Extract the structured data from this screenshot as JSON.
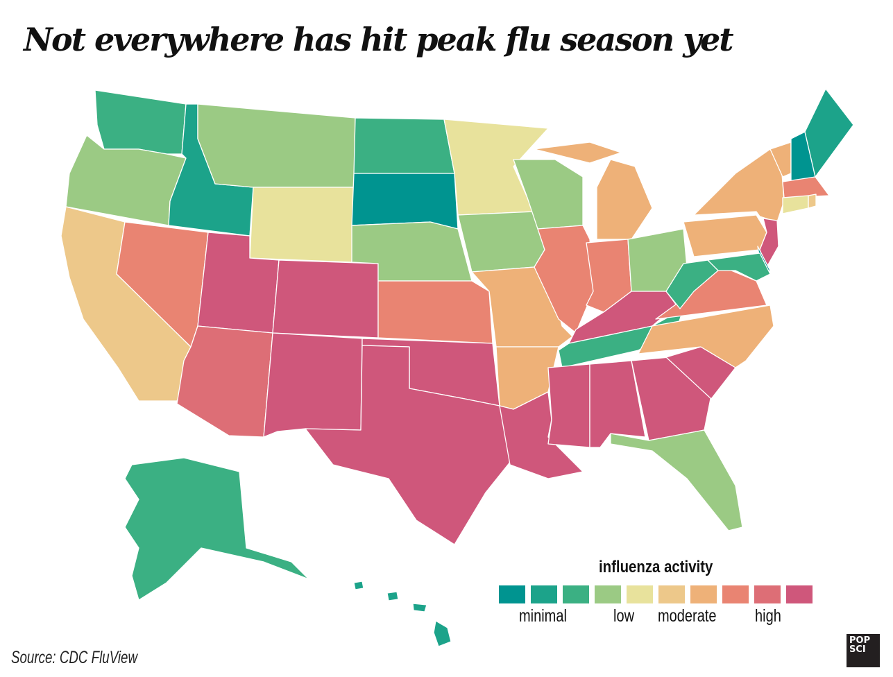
{
  "title": "Not everywhere has hit peak flu season yet",
  "legend": {
    "title": "influenza activity",
    "colors": [
      "#009490",
      "#1ca38a",
      "#3bb083",
      "#9bca84",
      "#e8e29c",
      "#edc88a",
      "#eeb178",
      "#e98472",
      "#dd6e76",
      "#cf577b"
    ],
    "labels": {
      "minimal": "minimal",
      "low": "low",
      "moderate": "moderate",
      "high": "high"
    }
  },
  "states": {
    "WA": 3,
    "OR": 4,
    "CA": 6,
    "NV": 8,
    "ID": 2,
    "MT": 4,
    "WY": 5,
    "UT": 10,
    "AZ": 9,
    "CO": 10,
    "NM": 10,
    "ND": 3,
    "SD": 1,
    "NE": 4,
    "KS": 8,
    "OK": 10,
    "TX": 10,
    "MN": 5,
    "IA": 4,
    "MO": 7,
    "AR": 7,
    "LA": 10,
    "WI": 4,
    "IL": 8,
    "MI": 7,
    "IN": 8,
    "OH": 4,
    "KY": 10,
    "TN": 3,
    "MS": 10,
    "AL": 10,
    "GA": 10,
    "FL": 4,
    "SC": 10,
    "NC": 7,
    "VA": 8,
    "WV": 3,
    "PA": 7,
    "NY": 7,
    "VT": 7,
    "NH": 1,
    "ME": 2,
    "MA": 8,
    "RI": 6,
    "CT": 5,
    "NJ": 10,
    "DE": 1,
    "MD": 3,
    "AK": 3,
    "HI": 2
  },
  "source": "Source: CDC FluView",
  "logo": "POP SCI"
}
